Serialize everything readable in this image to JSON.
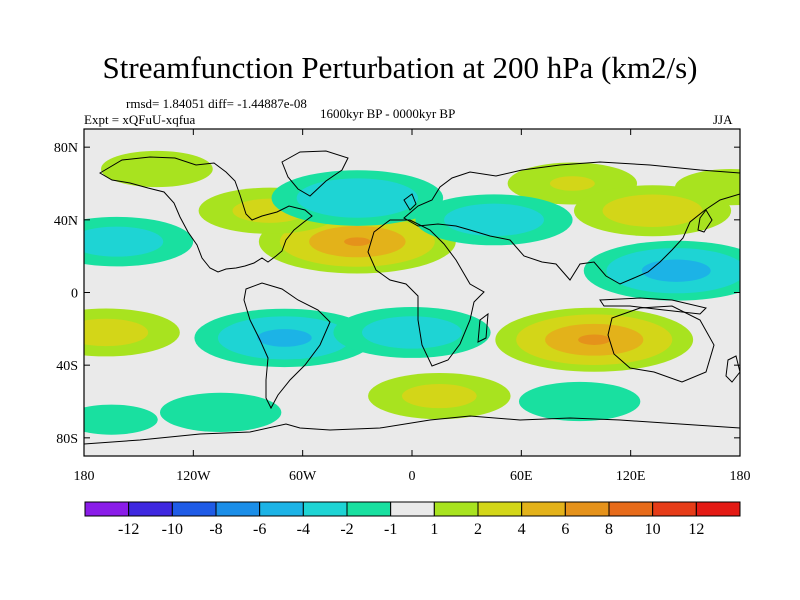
{
  "header": {
    "title": "Streamfunction Perturbation at 200 hPa (km2/s)",
    "stats": "rmsd= 1.84051 diff= -1.44887e-08",
    "expt": "Expt = xQFuU-xqfua",
    "period": "1600kyr BP - 0000kyr BP",
    "season": "JJA"
  },
  "chart_data": {
    "type": "heatmap",
    "title": "Streamfunction Perturbation at 200 hPa (km2/s)",
    "xlabel": "",
    "ylabel": "",
    "xlim": [
      -180,
      180
    ],
    "ylim": [
      -90,
      90
    ],
    "x_ticks": [
      {
        "value": -180,
        "label": "180"
      },
      {
        "value": -120,
        "label": "120W"
      },
      {
        "value": -60,
        "label": "60W"
      },
      {
        "value": 0,
        "label": "0"
      },
      {
        "value": 60,
        "label": "60E"
      },
      {
        "value": 120,
        "label": "120E"
      },
      {
        "value": 180,
        "label": "180"
      }
    ],
    "y_ticks": [
      {
        "value": 80,
        "label": "80N"
      },
      {
        "value": 40,
        "label": "40N"
      },
      {
        "value": 0,
        "label": "0"
      },
      {
        "value": -40,
        "label": "40S"
      },
      {
        "value": -80,
        "label": "80S"
      }
    ],
    "colorbar": {
      "levels": [
        -12,
        -10,
        -8,
        -6,
        -4,
        -2,
        -1,
        1,
        2,
        4,
        6,
        8,
        10,
        12
      ],
      "labels": [
        "-12",
        "-10",
        "-8",
        "-6",
        "-4",
        "-2",
        "-1",
        "1",
        "2",
        "4",
        "6",
        "8",
        "10",
        "12"
      ],
      "colors": [
        "#8a1ce8",
        "#3f28e0",
        "#1f5be6",
        "#1b8ee8",
        "#1cb3e6",
        "#1ed4d4",
        "#19e0a0",
        "#eaeaea",
        "#a8e31f",
        "#d3d618",
        "#e3b21a",
        "#e5921b",
        "#e76b1a",
        "#e63c18",
        "#e41a14"
      ]
    },
    "anomalies": [
      {
        "lon": -30,
        "lat": 28,
        "amp": 6.2
      },
      {
        "lon": -78,
        "lat": 45,
        "amp": 2.6
      },
      {
        "lon": -140,
        "lat": 68,
        "amp": 1.8
      },
      {
        "lon": 88,
        "lat": 60,
        "amp": 2.2
      },
      {
        "lon": 132,
        "lat": 45,
        "amp": 3.2
      },
      {
        "lon": 175,
        "lat": 58,
        "amp": 1.8
      },
      {
        "lon": -30,
        "lat": 52,
        "amp": -4.0
      },
      {
        "lon": -162,
        "lat": 28,
        "amp": -3.0
      },
      {
        "lon": 45,
        "lat": 40,
        "amp": -3.2
      },
      {
        "lon": 145,
        "lat": 12,
        "amp": -5.0
      },
      {
        "lon": -70,
        "lat": -25,
        "amp": -4.6
      },
      {
        "lon": 0,
        "lat": -22,
        "amp": -3.2
      },
      {
        "lon": 100,
        "lat": -26,
        "amp": 6.3
      },
      {
        "lon": -168,
        "lat": -22,
        "amp": 2.8
      },
      {
        "lon": 15,
        "lat": -57,
        "amp": 2.6
      },
      {
        "lon": 92,
        "lat": -60,
        "amp": -2.0
      },
      {
        "lon": -105,
        "lat": -66,
        "amp": -2.0
      },
      {
        "lon": -165,
        "lat": -70,
        "amp": -1.5
      }
    ]
  }
}
